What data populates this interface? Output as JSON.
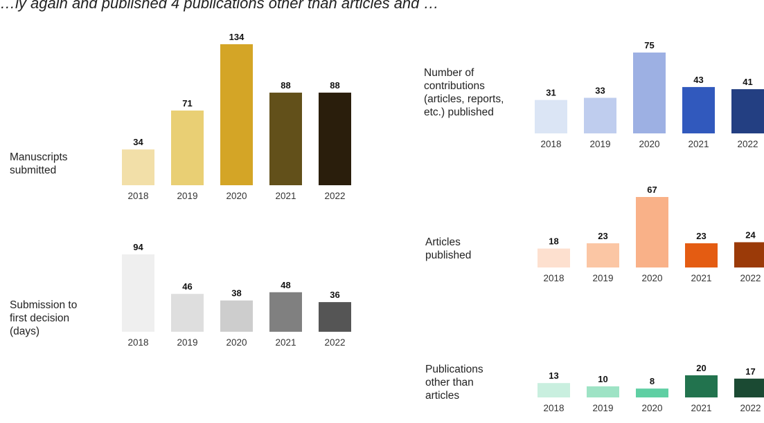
{
  "header_text": "…ly again and published 4 publications other than articles and …",
  "chart_data": [
    {
      "type": "bar",
      "id": "manuscripts",
      "label": "Manuscripts\nsubmitted",
      "categories": [
        "2018",
        "2019",
        "2020",
        "2021",
        "2022"
      ],
      "values": [
        34,
        71,
        134,
        88,
        88
      ],
      "colors": [
        "#f2dfa8",
        "#e9cf74",
        "#d4a526",
        "#62501a",
        "#2a1e0c"
      ],
      "ylim": [
        0,
        134
      ],
      "grid": false
    },
    {
      "type": "bar",
      "id": "submission",
      "label": "Submission to\nfirst decision\n(days)",
      "categories": [
        "2018",
        "2019",
        "2020",
        "2021",
        "2022"
      ],
      "values": [
        94,
        46,
        38,
        48,
        36
      ],
      "colors": [
        "#efefef",
        "#dedede",
        "#cdcdcd",
        "#808080",
        "#555555"
      ],
      "ylim": [
        0,
        94
      ],
      "grid": false
    },
    {
      "type": "bar",
      "id": "contributions",
      "label": "Number of\ncontributions\n(articles, reports,\netc.) published",
      "categories": [
        "2018",
        "2019",
        "2020",
        "2021",
        "2022"
      ],
      "values": [
        31,
        33,
        75,
        43,
        41
      ],
      "colors": [
        "#dbe5f5",
        "#bfcdee",
        "#9db0e3",
        "#3159bd",
        "#233f82"
      ],
      "ylim": [
        0,
        75
      ],
      "grid": false
    },
    {
      "type": "bar",
      "id": "articles",
      "label": "Articles\npublished",
      "categories": [
        "2018",
        "2019",
        "2020",
        "2021",
        "2022"
      ],
      "values": [
        18,
        23,
        67,
        23,
        24
      ],
      "colors": [
        "#fde0cf",
        "#fbc6a4",
        "#f9b188",
        "#e45c12",
        "#9b3a08"
      ],
      "ylim": [
        0,
        67
      ],
      "grid": false
    },
    {
      "type": "bar",
      "id": "other",
      "label": "Publications\nother than\narticles",
      "categories": [
        "2018",
        "2019",
        "2020",
        "2021",
        "2022"
      ],
      "values": [
        13,
        10,
        8,
        20,
        17
      ],
      "colors": [
        "#c9efdf",
        "#9ee3c5",
        "#5fcfa3",
        "#22734e",
        "#1b4a33"
      ],
      "ylim": [
        0,
        20
      ],
      "grid": false
    }
  ]
}
